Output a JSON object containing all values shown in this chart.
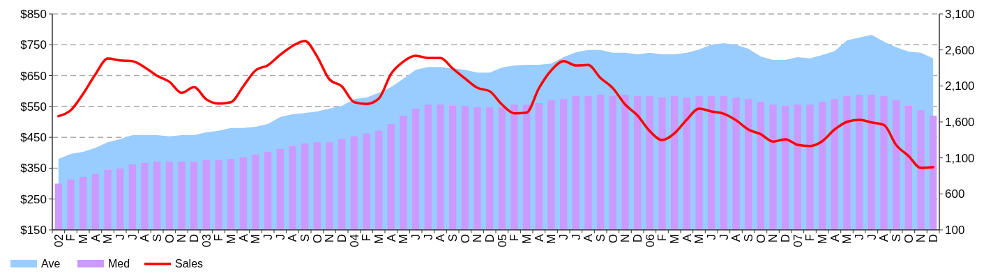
{
  "chart_data": {
    "type": "bar",
    "categories": [
      "02",
      "F",
      "M",
      "A",
      "M",
      "J",
      "J",
      "A",
      "S",
      "O",
      "N",
      "D",
      "03",
      "F",
      "M",
      "A",
      "M",
      "J",
      "J",
      "A",
      "S",
      "O",
      "N",
      "D",
      "04",
      "F",
      "M",
      "A",
      "M",
      "J",
      "J",
      "A",
      "S",
      "O",
      "N",
      "D",
      "05",
      "F",
      "M",
      "A",
      "M",
      "J",
      "J",
      "A",
      "S",
      "O",
      "N",
      "D",
      "06",
      "F",
      "M",
      "A",
      "M",
      "J",
      "J",
      "A",
      "S",
      "O",
      "N",
      "D",
      "07",
      "F",
      "M",
      "A",
      "M",
      "J",
      "J",
      "A",
      "S",
      "O",
      "N",
      "D"
    ],
    "series": [
      {
        "name": "Ave",
        "type": "area",
        "color": "#99ccff",
        "values": [
          380,
          396,
          403,
          416,
          434,
          444,
          457,
          457,
          457,
          453,
          457,
          457,
          466,
          471,
          480,
          480,
          484,
          493,
          516,
          525,
          529,
          534,
          543,
          552,
          574,
          579,
          594,
          613,
          640,
          669,
          678,
          678,
          674,
          669,
          660,
          660,
          676,
          683,
          685,
          685,
          689,
          710,
          726,
          733,
          733,
          724,
          724,
          719,
          724,
          719,
          719,
          724,
          735,
          750,
          755,
          750,
          737,
          712,
          701,
          701,
          710,
          706,
          717,
          730,
          764,
          773,
          782,
          760,
          742,
          728,
          724,
          706
        ]
      },
      {
        "name": "Med",
        "color": "#cc99ff",
        "values": [
          300,
          313,
          322,
          331,
          344,
          349,
          362,
          367,
          371,
          371,
          371,
          371,
          376,
          376,
          380,
          385,
          394,
          403,
          412,
          421,
          430,
          434,
          434,
          444,
          453,
          462,
          471,
          493,
          520,
          543,
          556,
          556,
          552,
          552,
          547,
          547,
          547,
          556,
          556,
          561,
          570,
          574,
          584,
          584,
          588,
          584,
          588,
          584,
          584,
          579,
          584,
          579,
          584,
          584,
          584,
          579,
          574,
          565,
          556,
          552,
          556,
          556,
          565,
          574,
          584,
          588,
          588,
          584,
          570,
          552,
          538,
          520
        ]
      },
      {
        "name": "Sales",
        "type": "line",
        "axis": "y2",
        "color": "#ff0000",
        "values": [
          1680,
          1762,
          1990,
          2261,
          2480,
          2454,
          2444,
          2358,
          2242,
          2158,
          2003,
          2084,
          1913,
          1855,
          1874,
          2094,
          2316,
          2387,
          2532,
          2655,
          2726,
          2506,
          2190,
          2094,
          1874,
          1849,
          1923,
          2268,
          2439,
          2519,
          2487,
          2487,
          2342,
          2203,
          2074,
          2026,
          1842,
          1719,
          1729,
          2068,
          2316,
          2445,
          2384,
          2390,
          2210,
          2068,
          1842,
          1690,
          1471,
          1348,
          1442,
          1632,
          1784,
          1745,
          1713,
          1623,
          1494,
          1429,
          1326,
          1358,
          1281,
          1264,
          1332,
          1494,
          1600,
          1629,
          1593,
          1558,
          1278,
          1126,
          961,
          971
        ]
      }
    ],
    "ylim": [
      150,
      850
    ],
    "yticks": [
      {
        "value": 150,
        "label": "$150"
      },
      {
        "value": 250,
        "label": "$250"
      },
      {
        "value": 350,
        "label": "$350"
      },
      {
        "value": 450,
        "label": "$450"
      },
      {
        "value": 550,
        "label": "$550"
      },
      {
        "value": 650,
        "label": "$650"
      },
      {
        "value": 750,
        "label": "$750"
      },
      {
        "value": 850,
        "label": "$850"
      }
    ],
    "y2lim": [
      100,
      3100
    ],
    "y2ticks": [
      100,
      600,
      {
        "value": 1100,
        "label": "1,100"
      },
      {
        "value": 1600,
        "label": "1,600"
      },
      {
        "value": 2100,
        "label": "2,100"
      },
      {
        "value": 2600,
        "label": "2,600"
      },
      {
        "value": 3100,
        "label": "3,100"
      }
    ],
    "grid": "y",
    "legend": "bottom left"
  }
}
